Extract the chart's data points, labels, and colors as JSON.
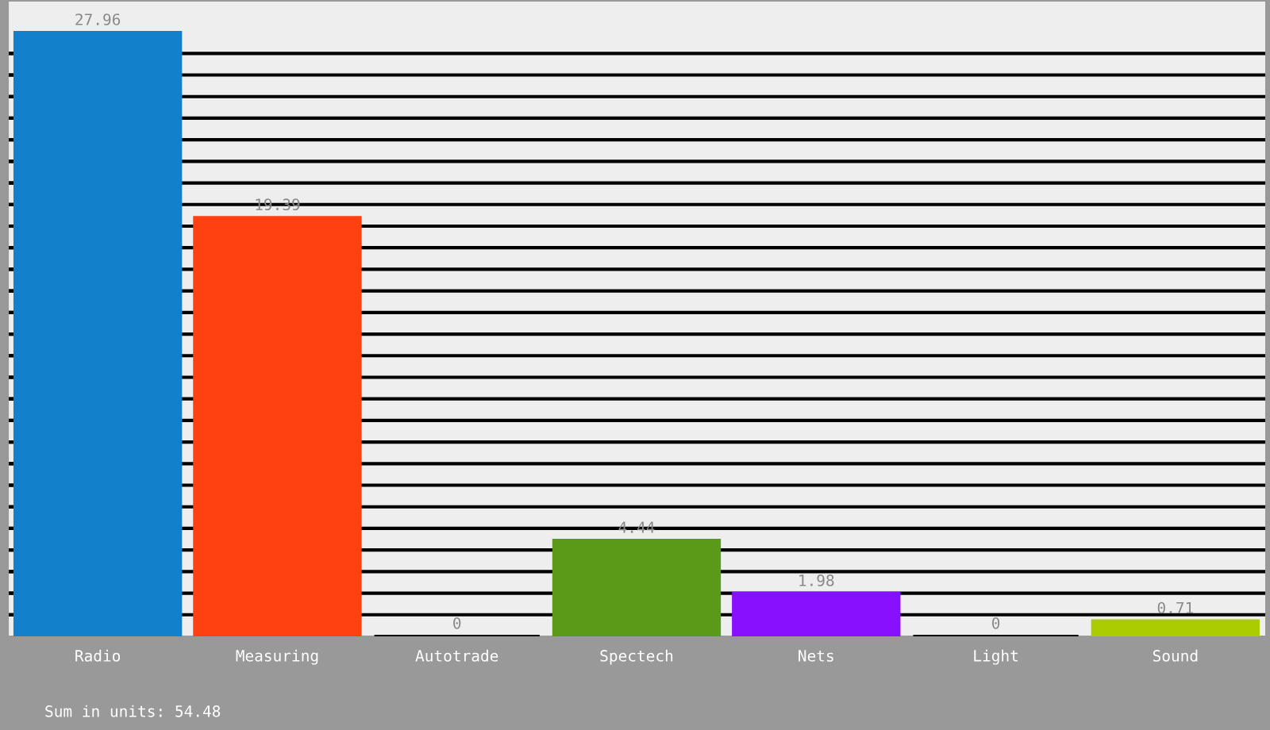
{
  "chart_data": {
    "type": "bar",
    "categories": [
      "Radio",
      "Measuring",
      "Autotrade",
      "Spectech",
      "Nets",
      "Light",
      "Sound"
    ],
    "values": [
      27.96,
      19.39,
      0,
      4.44,
      1.98,
      0,
      0.71
    ],
    "colors": [
      "#1380cc",
      "#ff4010",
      "#000000",
      "#5a9a18",
      "#8810ff",
      "#000000",
      "#aacc00"
    ],
    "data_labels": true,
    "ylim": [
      0,
      29.4
    ],
    "yticks": [
      {
        "value": 1,
        "label": null
      },
      {
        "value": 2,
        "label": null
      },
      {
        "value": 3,
        "label": null
      },
      {
        "value": 4,
        "label": null
      },
      {
        "value": 5,
        "label": null
      },
      {
        "value": 6,
        "label": null
      },
      {
        "value": 7,
        "label": null
      },
      {
        "value": 8,
        "label": null
      },
      {
        "value": 9,
        "label": null
      },
      {
        "value": 10,
        "label": null
      },
      {
        "value": 11,
        "label": null
      },
      {
        "value": 12,
        "label": null
      },
      {
        "value": 13,
        "label": null
      },
      {
        "value": 14,
        "label": null
      },
      {
        "value": 15,
        "label": null
      },
      {
        "value": 16,
        "label": null
      },
      {
        "value": 17,
        "label": null
      },
      {
        "value": 18,
        "label": null
      },
      {
        "value": 19,
        "label": null
      },
      {
        "value": 20,
        "label": null
      },
      {
        "value": 21,
        "label": null
      },
      {
        "value": 22,
        "label": null
      },
      {
        "value": 23,
        "label": null
      },
      {
        "value": 24,
        "label": null
      },
      {
        "value": 25,
        "label": null
      },
      {
        "value": 26,
        "label": null
      },
      {
        "value": 27,
        "label": null
      }
    ],
    "grid": "y",
    "tick_labels": "x",
    "annotations": [
      "Sum in units: 54.48"
    ]
  }
}
